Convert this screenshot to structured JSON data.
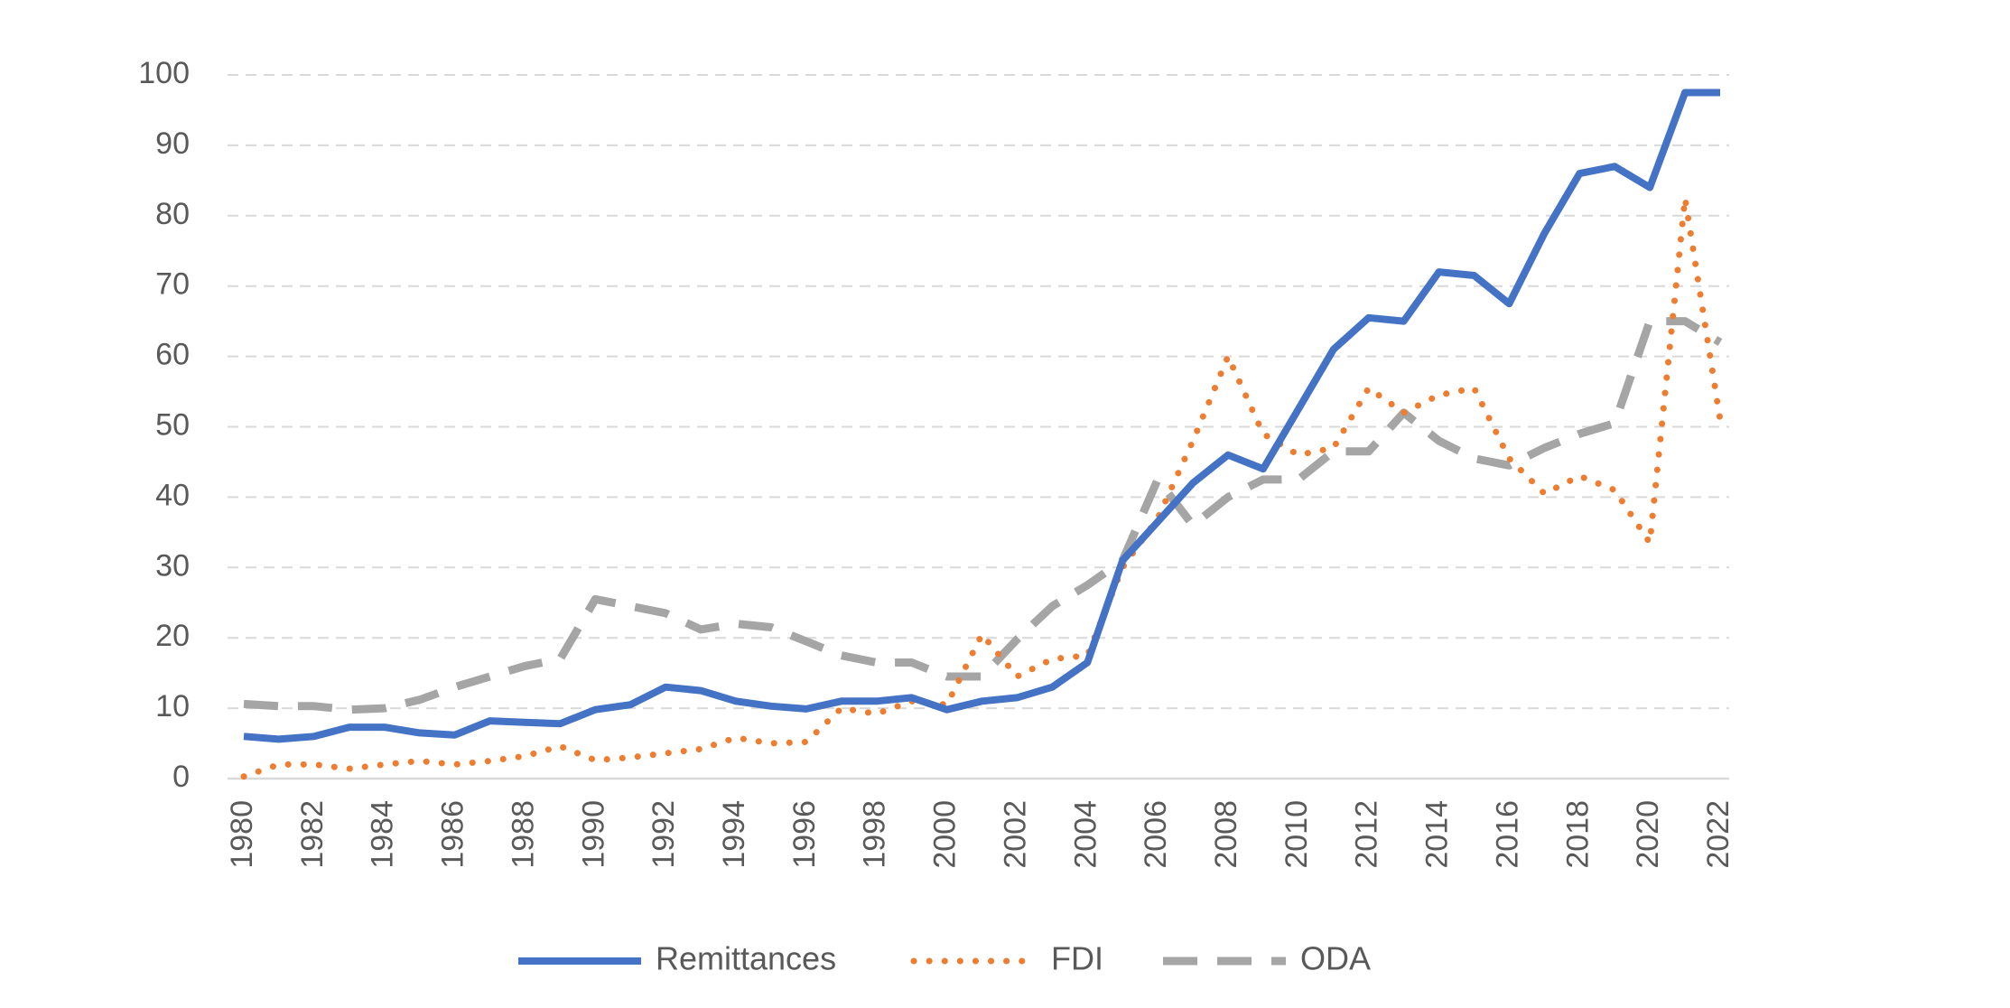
{
  "chart_data": {
    "type": "line",
    "title": "",
    "xlabel": "",
    "ylabel": "",
    "ylim": [
      0,
      100
    ],
    "yticks": [
      0,
      10,
      20,
      30,
      40,
      50,
      60,
      70,
      80,
      90,
      100
    ],
    "xticks": [
      1980,
      1982,
      1984,
      1986,
      1988,
      1990,
      1992,
      1994,
      1996,
      1998,
      2000,
      2002,
      2004,
      2006,
      2008,
      2010,
      2012,
      2014,
      2016,
      2018,
      2020,
      2022
    ],
    "grid": true,
    "legend_position": "bottom",
    "x": [
      1980,
      1981,
      1982,
      1983,
      1984,
      1985,
      1986,
      1987,
      1988,
      1989,
      1990,
      1991,
      1992,
      1993,
      1994,
      1995,
      1996,
      1997,
      1998,
      1999,
      2000,
      2001,
      2002,
      2003,
      2004,
      2005,
      2006,
      2007,
      2008,
      2009,
      2010,
      2011,
      2012,
      2013,
      2014,
      2015,
      2016,
      2017,
      2018,
      2019,
      2020,
      2021,
      2022
    ],
    "series": [
      {
        "name": "Remittances",
        "color": "#4472C4",
        "style": "solid",
        "values": [
          6,
          5.6,
          6,
          7.3,
          7.3,
          6.5,
          6.2,
          8.2,
          8,
          7.8,
          9.8,
          10.5,
          13,
          12.5,
          11,
          10.3,
          9.9,
          11,
          11,
          11.5,
          9.8,
          11,
          11.5,
          13,
          16.5,
          31,
          36.5,
          42,
          46,
          44,
          52.5,
          61,
          65.5,
          65,
          72,
          71.5,
          67.5,
          77.5,
          86,
          87,
          84,
          97.5,
          97.5
        ]
      },
      {
        "name": "FDI",
        "color": "#ED7D31",
        "style": "dotted",
        "values": [
          0.3,
          2,
          2,
          1.4,
          2,
          2.5,
          2,
          2.5,
          3.2,
          4.6,
          2.6,
          3,
          3.6,
          4.2,
          5.8,
          5,
          5.2,
          10,
          9.2,
          11,
          10.5,
          20.5,
          14.5,
          17,
          17.5,
          30,
          37,
          48,
          60,
          49,
          46,
          47,
          55.5,
          52,
          54.5,
          55.5,
          45.5,
          40.5,
          43,
          41,
          33.5,
          82.5,
          51
        ]
      },
      {
        "name": "ODA",
        "color": "#A5A5A5",
        "style": "dashed",
        "values": [
          10.6,
          10.3,
          10.3,
          9.8,
          10,
          11.2,
          13,
          14.5,
          16,
          17,
          25.5,
          24.5,
          23.5,
          21.2,
          22,
          21.5,
          19.5,
          17.5,
          16.5,
          16.5,
          14.5,
          14.5,
          19.8,
          24.5,
          27.5,
          31,
          42.5,
          36,
          40,
          42.5,
          42.5,
          46.5,
          46.5,
          52,
          48,
          45.5,
          44.5,
          47,
          49,
          50.5,
          65,
          65,
          62
        ]
      }
    ]
  }
}
